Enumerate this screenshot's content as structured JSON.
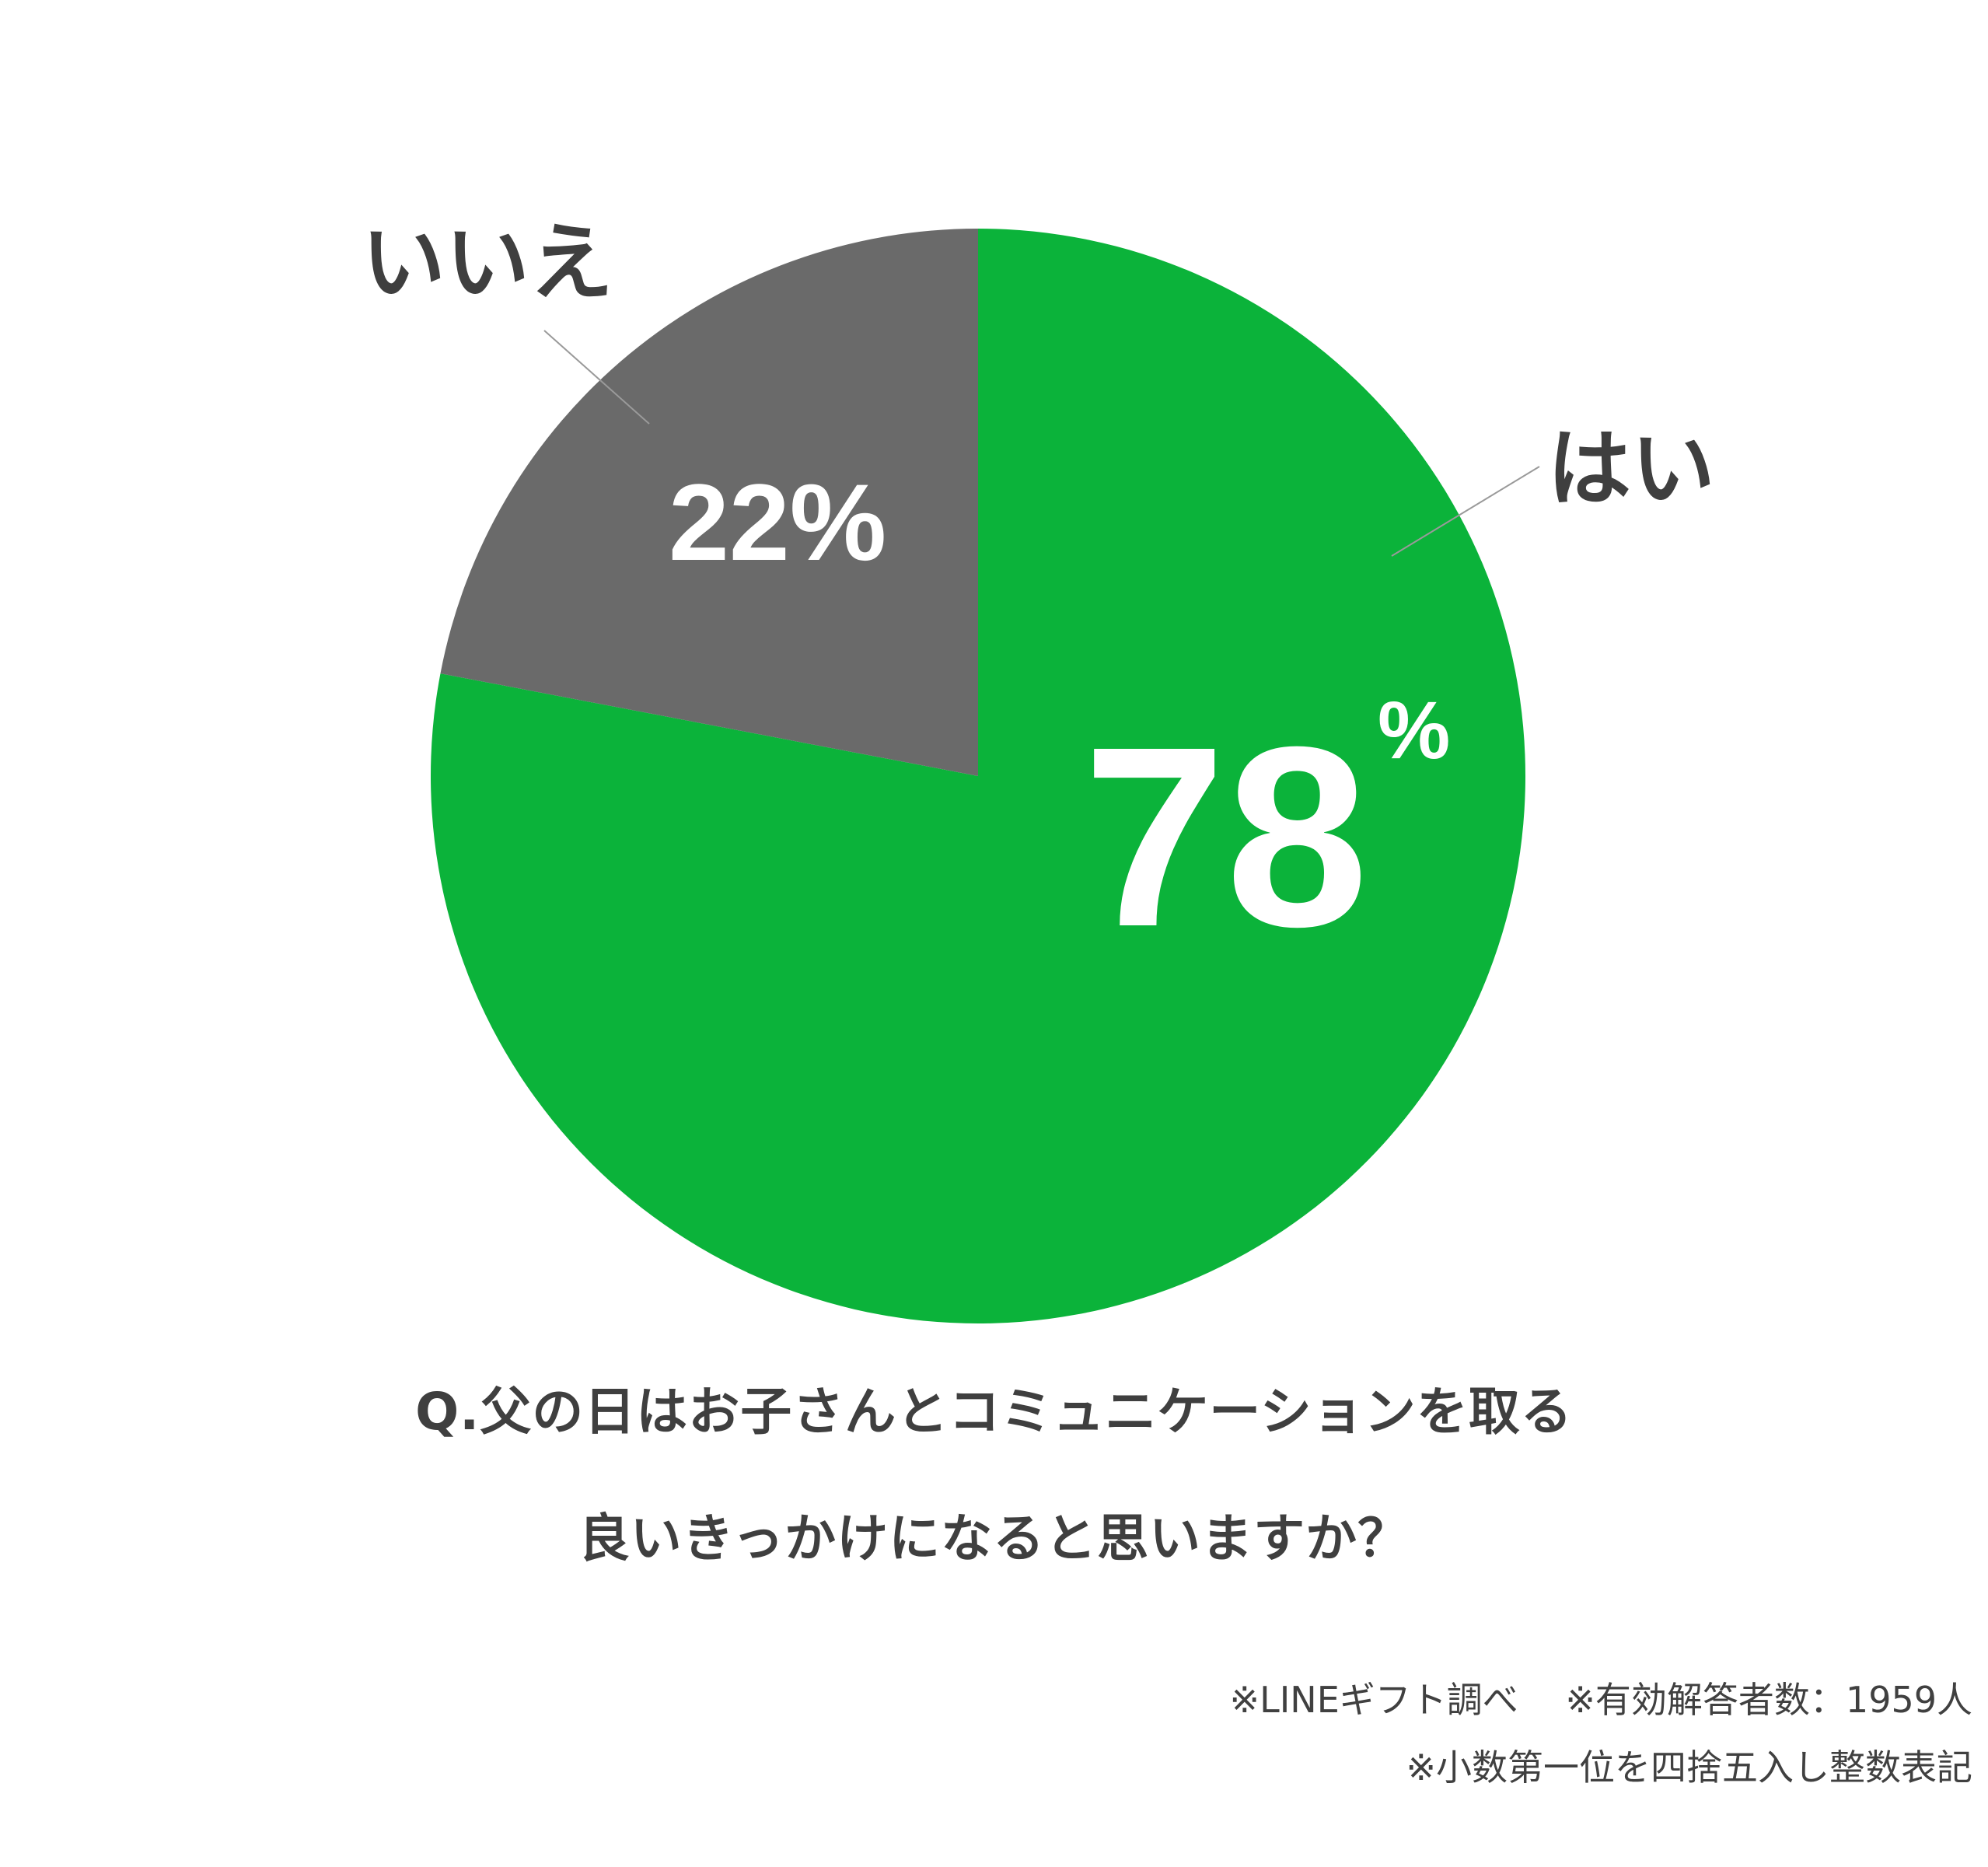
{
  "chart_data": {
    "type": "pie",
    "slices": [
      {
        "label": "はい",
        "value": 78,
        "display": "78",
        "unit": "%",
        "color": "#0bb33a"
      },
      {
        "label": "いいえ",
        "value": 22,
        "display": "22%",
        "color": "#6a6a6a"
      }
    ],
    "start": "top",
    "direction": "clockwise"
  },
  "question": {
    "line1": "Q.父の日はお子さんとコミュニケーションを取る",
    "line2": "良いきっかけになると思いますか？"
  },
  "notes": {
    "line1": "※LINEギフト調べ　 ※有効解答者数：1959人",
    "line2": "※小数第一位を四捨五入し整数表記"
  }
}
